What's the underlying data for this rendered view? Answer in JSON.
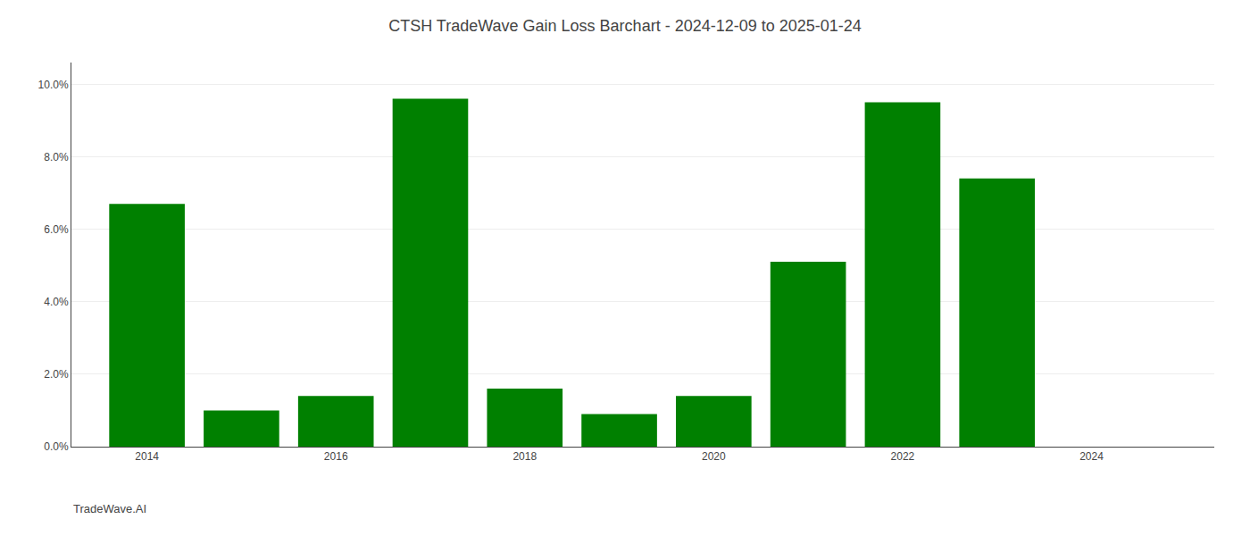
{
  "chart_data": {
    "type": "bar",
    "title": "CTSH TradeWave Gain Loss Barchart - 2024-12-09 to 2025-01-24",
    "x": [
      2014,
      2015,
      2016,
      2017,
      2018,
      2019,
      2020,
      2021,
      2022,
      2023,
      2024
    ],
    "values": [
      0.067,
      0.01,
      0.014,
      0.096,
      0.016,
      0.009,
      0.014,
      0.051,
      0.095,
      0.074,
      0.0
    ],
    "color": "#008000",
    "xlim": [
      2013.2,
      2025.3
    ],
    "xticks": [
      2014,
      2016,
      2018,
      2020,
      2022,
      2024
    ],
    "ylim": [
      0,
      0.106
    ],
    "yticks": [
      {
        "value": 0.0,
        "label": "0.0%"
      },
      {
        "value": 0.02,
        "label": "2.0%"
      },
      {
        "value": 0.04,
        "label": "4.0%"
      },
      {
        "value": 0.06,
        "label": "6.0%"
      },
      {
        "value": 0.08,
        "label": "8.0%"
      },
      {
        "value": 0.1,
        "label": "10.0%"
      }
    ],
    "grid": true,
    "annotations": [
      "TradeWave.AI"
    ]
  }
}
